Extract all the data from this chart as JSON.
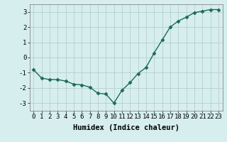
{
  "x": [
    0,
    1,
    2,
    3,
    4,
    5,
    6,
    7,
    8,
    9,
    10,
    11,
    12,
    13,
    14,
    15,
    16,
    17,
    18,
    19,
    20,
    21,
    22,
    23
  ],
  "y": [
    -0.8,
    -1.35,
    -1.45,
    -1.45,
    -1.55,
    -1.75,
    -1.8,
    -1.95,
    -2.35,
    -2.4,
    -3.0,
    -2.15,
    -1.65,
    -1.05,
    -0.65,
    0.3,
    1.15,
    2.0,
    2.4,
    2.65,
    2.95,
    3.05,
    3.15,
    3.15
  ],
  "line_color": "#1a6b5a",
  "marker": "D",
  "markersize": 2.5,
  "linewidth": 1.0,
  "xlabel": "Humidex (Indice chaleur)",
  "ylabel": "",
  "xlim": [
    -0.5,
    23.5
  ],
  "ylim": [
    -3.5,
    3.5
  ],
  "yticks": [
    -3,
    -2,
    -1,
    0,
    1,
    2,
    3
  ],
  "xticks": [
    0,
    1,
    2,
    3,
    4,
    5,
    6,
    7,
    8,
    9,
    10,
    11,
    12,
    13,
    14,
    15,
    16,
    17,
    18,
    19,
    20,
    21,
    22,
    23
  ],
  "bg_color": "#d6eeee",
  "grid_color": "#b8cece",
  "tick_fontsize": 6.5,
  "xlabel_fontsize": 7.5,
  "xlabel_bold": true
}
